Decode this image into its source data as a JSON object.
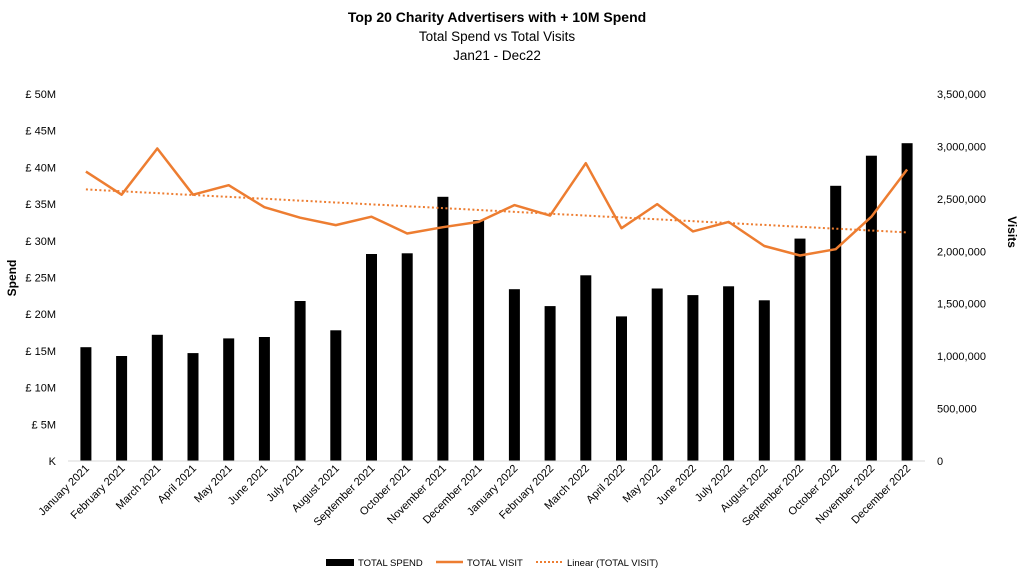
{
  "chart_data": {
    "type": "bar",
    "title": "Top 20 Charity Advertisers with + 10M Spend",
    "subtitle_lines": [
      "Total Spend vs Total Visits",
      "Jan21 - Dec22"
    ],
    "categories": [
      "January 2021",
      "February 2021",
      "March 2021",
      "April 2021",
      "May 2021",
      "June 2021",
      "July 2021",
      "August 2021",
      "September 2021",
      "October 2021",
      "November 2021",
      "December 2021",
      "January 2022",
      "February 2022",
      "March 2022",
      "April 2022",
      "May 2022",
      "June 2022",
      "July 2022",
      "August 2022",
      "September 2022",
      "October 2022",
      "November 2022",
      "December 2022"
    ],
    "series": [
      {
        "name": "TOTAL SPEND",
        "type": "bar",
        "axis": "left",
        "color": "#000000",
        "values": [
          15.5,
          14.3,
          17.2,
          14.7,
          16.7,
          16.9,
          21.8,
          17.8,
          28.2,
          28.3,
          36.0,
          32.8,
          23.4,
          21.1,
          25.3,
          19.7,
          23.5,
          22.6,
          23.8,
          21.9,
          30.3,
          37.5,
          41.6,
          43.3
        ]
      },
      {
        "name": "TOTAL VISIT",
        "type": "line",
        "axis": "right",
        "color": "#ED7D31",
        "values": [
          2760000,
          2540000,
          2980000,
          2540000,
          2630000,
          2420000,
          2320000,
          2250000,
          2330000,
          2170000,
          2230000,
          2280000,
          2440000,
          2340000,
          2840000,
          2220000,
          2450000,
          2190000,
          2280000,
          2050000,
          1960000,
          2020000,
          2330000,
          2780000
        ]
      },
      {
        "name": "Linear (TOTAL VISIT)",
        "type": "trendline",
        "axis": "right",
        "color": "#ED7D31",
        "start": 2590000,
        "end": 2180000
      }
    ],
    "y_left": {
      "label": "Spend",
      "ylim": [
        0,
        50
      ],
      "tick_labels": [
        "K",
        "£ 5M",
        "£ 10M",
        "£ 15M",
        "£ 20M",
        "£ 25M",
        "£ 30M",
        "£ 35M",
        "£ 40M",
        "£ 45M",
        "£ 50M"
      ]
    },
    "y_right": {
      "label": "Visits",
      "ylim": [
        0,
        3500000
      ],
      "tick_labels": [
        "0",
        "500,000",
        "1,000,000",
        "1,500,000",
        "2,000,000",
        "2,500,000",
        "3,000,000",
        "3,500,000"
      ]
    },
    "grid": false,
    "legend_position": "bottom"
  }
}
